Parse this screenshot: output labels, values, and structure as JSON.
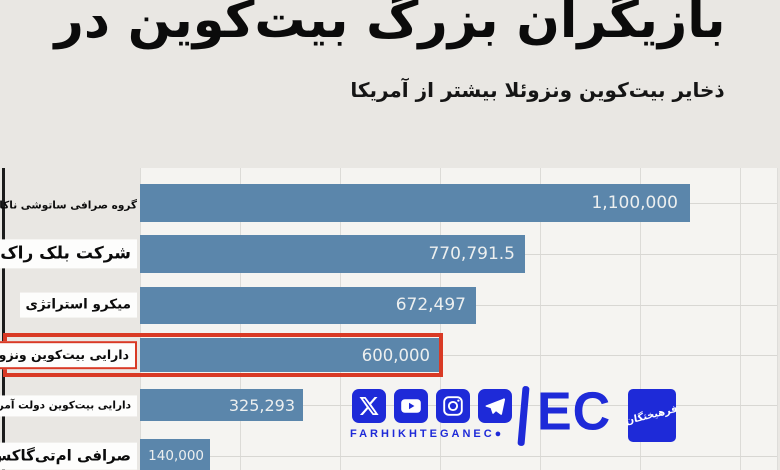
{
  "header": {
    "title": "بازیگران بزرگ بیت‌کوین در جهان",
    "subtitle": "ذخایر بیت‌کوین ونزوئلا بیشتر از آمریکا"
  },
  "chart_data": {
    "type": "bar",
    "orientation": "horizontal",
    "title": "بازیگران بزرگ بیت‌کوین در جهان",
    "subtitle": "ذخایر بیت‌کوین ونزوئلا بیشتر از آمریکا",
    "xlim": [
      0,
      1270000
    ],
    "grid": true,
    "gridline_step": 200000,
    "bar_color": "#5b86ab",
    "highlight_box_color": "#d93a25",
    "rows": [
      {
        "label": "گروه صرافی ساتوشی ناکاموتو",
        "value": 1100000,
        "value_label": "1,100,000",
        "highlighted": false
      },
      {
        "label": "شرکت بلک راک",
        "value": 770791.5,
        "value_label": "770,791.5",
        "highlighted": false
      },
      {
        "label": "میکرو استراتژی",
        "value": 672497,
        "value_label": "672,497",
        "highlighted": false
      },
      {
        "label": "دارایی بیت‌کوین ونزوئلا",
        "value": 600000,
        "value_label": "600,000",
        "highlighted": true
      },
      {
        "label": "دارایی بیت‌کوین دولت آمریکا",
        "value": 325293,
        "value_label": "325,293",
        "highlighted": false
      },
      {
        "label": "صرافی ام‌تی‌گاکس",
        "value": 140000,
        "value_label": "140,000",
        "highlighted": false
      }
    ]
  },
  "branding": {
    "brand_color": "#1e2ad8",
    "social_icons": [
      "x-icon",
      "youtube-icon",
      "instagram-icon",
      "telegram-icon"
    ],
    "handle": "FARHIKHTEGANEC●",
    "logo_latin": "EC",
    "logo_fa": "فرهیختگان"
  }
}
